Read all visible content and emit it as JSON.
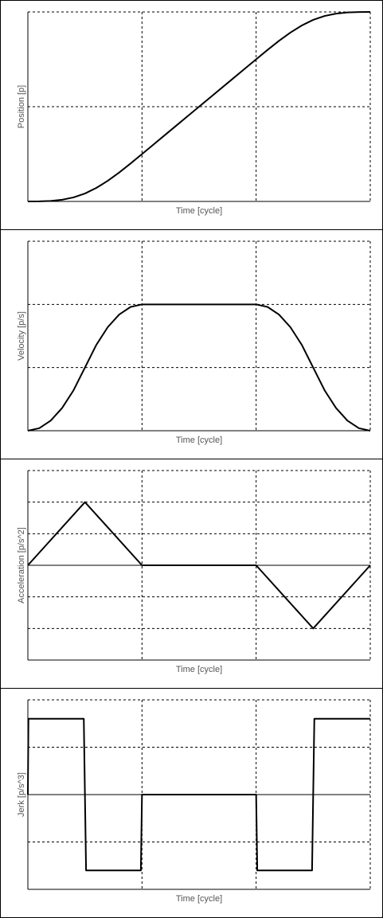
{
  "chart_data": [
    {
      "type": "line",
      "y_label": "Position [p]",
      "x_label": "Time [cycle]",
      "x": [
        0,
        0.1,
        0.2,
        0.3,
        0.4,
        0.5,
        0.6,
        0.7,
        0.8,
        0.9,
        1,
        1.1,
        1.2,
        1.3,
        1.4,
        1.5,
        1.6,
        1.7,
        1.8,
        1.9,
        2,
        2.1,
        2.2,
        2.3,
        2.4,
        2.5,
        2.6,
        2.7,
        2.8,
        2.9,
        3
      ],
      "values": [
        0,
        0.000167,
        0.001333,
        0.0045,
        0.010667,
        0.020833,
        0.035667,
        0.0545,
        0.076333,
        0.100167,
        0.125,
        0.15,
        0.175,
        0.2,
        0.225,
        0.25,
        0.275,
        0.3,
        0.325,
        0.35,
        0.375,
        0.399833,
        0.423667,
        0.4455,
        0.464333,
        0.479167,
        0.489333,
        0.4955,
        0.498667,
        0.499833,
        0.5
      ],
      "color": "#000000",
      "xlim": [
        0,
        3
      ],
      "xticks": [
        0,
        1,
        2,
        3
      ],
      "ylim": [
        0,
        0.5
      ],
      "yticks": [
        0,
        0.25,
        0.5
      ],
      "grid": true
    },
    {
      "type": "line",
      "y_label": "Velocity [p/s]",
      "x_label": "Time [cycle]",
      "x": [
        0,
        0.1,
        0.2,
        0.3,
        0.4,
        0.5,
        0.6,
        0.7,
        0.8,
        0.9,
        1,
        1.1,
        1.2,
        1.3,
        1.4,
        1.5,
        1.6,
        1.7,
        1.8,
        1.9,
        2,
        2.1,
        2.2,
        2.3,
        2.4,
        2.5,
        2.6,
        2.7,
        2.8,
        2.9,
        3
      ],
      "values": [
        0,
        0.005,
        0.02,
        0.045,
        0.08,
        0.125,
        0.17,
        0.205,
        0.23,
        0.245,
        0.25,
        0.25,
        0.25,
        0.25,
        0.25,
        0.25,
        0.25,
        0.25,
        0.25,
        0.25,
        0.25,
        0.245,
        0.23,
        0.205,
        0.17,
        0.125,
        0.08,
        0.045,
        0.02,
        0.005,
        0
      ],
      "color": "#000000",
      "xlim": [
        0,
        3
      ],
      "xticks": [
        0,
        1,
        2,
        3
      ],
      "ylim": [
        0,
        0.375
      ],
      "yticks": [
        0,
        0.125,
        0.25,
        0.375
      ],
      "grid": true
    },
    {
      "type": "line",
      "y_label": "Acceleration [p/s^2]",
      "x_label": "Time [cycle]",
      "x": [
        0,
        0.5,
        1,
        2,
        2.5,
        3
      ],
      "values": [
        0,
        0.5,
        0,
        0,
        -0.5,
        0
      ],
      "color": "#000000",
      "xlim": [
        0,
        3
      ],
      "xticks": [
        0,
        1,
        2,
        3
      ],
      "ylim": [
        -0.75,
        0.75
      ],
      "yticks": [
        -0.75,
        -0.5,
        -0.25,
        0,
        0.25,
        0.5,
        0.75
      ],
      "grid": true
    },
    {
      "type": "line",
      "y_label": "Jerk [p/s^3]",
      "x_label": "Time [cycle]",
      "x": [
        0,
        0.005,
        0.49,
        0.51,
        0.99,
        1,
        2,
        2.01,
        2.49,
        2.51,
        3
      ],
      "values": [
        0,
        1,
        1,
        -1,
        -1,
        0,
        0,
        -1,
        -1,
        1,
        1
      ],
      "color": "#000000",
      "xlim": [
        0,
        3
      ],
      "xticks": [
        0,
        1,
        2,
        3
      ],
      "ylim": [
        -1.25,
        1.25
      ],
      "yticks": [
        -1.25,
        -0.625,
        0,
        0.625,
        1.25
      ],
      "grid": true
    }
  ]
}
